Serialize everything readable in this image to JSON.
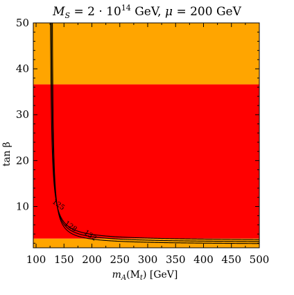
{
  "chart_data": {
    "type": "contour",
    "title": "M_S = 2·10^14 GeV, μ = 200 GeV",
    "title_parts": {
      "ms_sym": "M",
      "ms_sub": "S",
      "ms_eq": " = 2 · 10",
      "ms_exp": "14",
      "ms_unit": " GeV, ",
      "mu_sym": "μ",
      "mu_rest": " = 200 GeV"
    },
    "xlabel": "m_A(M_t) [GeV]",
    "xlabel_parts": {
      "sym": "m",
      "sub": "A",
      "rest": "(M",
      "sub2": "t",
      "tail": ") [GeV]"
    },
    "ylabel": "tan β",
    "xlim": [
      95,
      500
    ],
    "ylim": [
      1,
      50
    ],
    "xticks": [
      "100",
      "150",
      "200",
      "250",
      "300",
      "350",
      "400",
      "450",
      "500"
    ],
    "yticks": [
      "10",
      "20",
      "30",
      "40",
      "50"
    ],
    "regions": [
      {
        "name": "upper",
        "color": "#FFA500",
        "tanb_range": [
          36.6,
          50
        ]
      },
      {
        "name": "middle",
        "color": "#FF0000",
        "tanb_range": [
          3.0,
          36.6
        ]
      },
      {
        "name": "lower",
        "color": "#FFA500",
        "tanb_range": [
          1,
          3.0
        ]
      }
    ],
    "contours": [
      {
        "label": "125",
        "m_asym": 123.5,
        "t_asym": 2.5
      },
      {
        "label": "128",
        "m_asym": 125.5,
        "t_asym": 2.1
      },
      {
        "label": "132",
        "m_asym": 127.5,
        "t_asym": 1.7
      }
    ],
    "contour_labels": [
      {
        "text": "125",
        "x": 138,
        "y": 10
      },
      {
        "text": "128",
        "x": 160,
        "y": 5.3
      },
      {
        "text": "132",
        "x": 195,
        "y": 3.3
      }
    ]
  }
}
